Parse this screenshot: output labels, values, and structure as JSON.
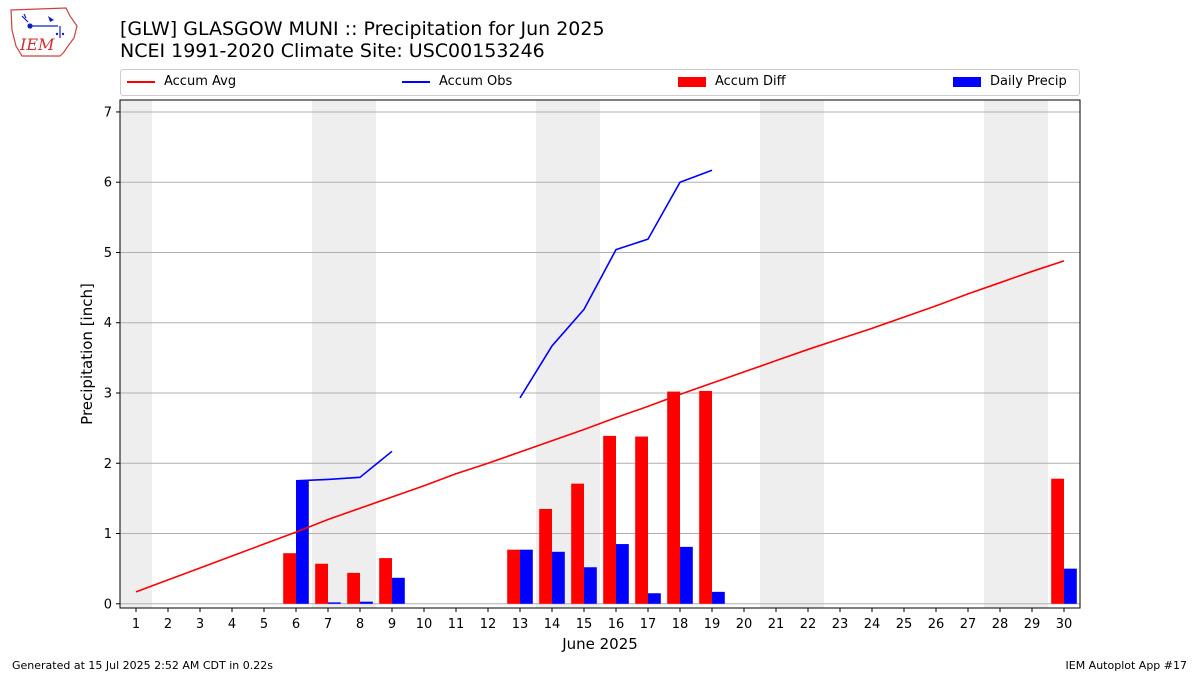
{
  "header": {
    "title_line1": "[GLW] GLASGOW MUNI :: Precipitation for Jun 2025",
    "title_line2": "NCEI 1991-2020 Climate Site: USC00153246"
  },
  "logo": {
    "text": "IEM",
    "icon": "iem-state-logo-icon"
  },
  "footer": {
    "left": "Generated at 15 Jul 2025 2:52 AM CDT in 0.22s",
    "right": "IEM Autoplot App #17"
  },
  "colors": {
    "avg": "#ff0000",
    "obs": "#0000ff",
    "diff": "#ff0000",
    "daily": "#0000ff",
    "weekend_band": "#eeeeee",
    "grid": "#b0b0b0"
  },
  "legend": {
    "placement": "top, above plot",
    "items": [
      {
        "label": "Accum Avg",
        "kind": "line",
        "color": "#ff0000"
      },
      {
        "label": "Accum Obs",
        "kind": "line",
        "color": "#0000ff"
      },
      {
        "label": "Accum Diff",
        "kind": "patch",
        "color": "#ff0000"
      },
      {
        "label": "Daily Precip",
        "kind": "patch",
        "color": "#0000ff"
      }
    ]
  },
  "chart_data": {
    "type": "bar",
    "title": "[GLW] GLASGOW MUNI :: Precipitation for Jun 2025",
    "subtitle": "NCEI 1991-2020 Climate Site: USC00153246",
    "xlabel": "June 2025",
    "ylabel": "Precipitation [inch]",
    "ylim": [
      -0.06,
      7.17
    ],
    "xlim": [
      0.5,
      30.5
    ],
    "yticks": [
      0,
      1,
      2,
      3,
      4,
      5,
      6,
      7
    ],
    "grid": "horizontal",
    "categories": [
      "1",
      "2",
      "3",
      "4",
      "5",
      "6",
      "7",
      "8",
      "9",
      "10",
      "11",
      "12",
      "13",
      "14",
      "15",
      "16",
      "17",
      "18",
      "19",
      "20",
      "21",
      "22",
      "23",
      "24",
      "25",
      "26",
      "27",
      "28",
      "29",
      "30"
    ],
    "weekend_days": [
      1,
      7,
      8,
      14,
      15,
      21,
      22,
      28,
      29
    ],
    "series": [
      {
        "name": "Accum Avg",
        "kind": "line",
        "values": [
          0.17,
          0.34,
          0.51,
          0.68,
          0.85,
          1.02,
          1.2,
          1.36,
          1.52,
          1.68,
          1.85,
          2.0,
          2.16,
          2.32,
          2.48,
          2.65,
          2.81,
          2.98,
          3.14,
          3.3,
          3.46,
          3.62,
          3.77,
          3.92,
          4.08,
          4.24,
          4.41,
          4.57,
          4.73,
          4.88
        ]
      },
      {
        "name": "Accum Obs",
        "kind": "line",
        "values": [
          null,
          null,
          null,
          null,
          null,
          1.75,
          1.77,
          1.8,
          2.17,
          null,
          null,
          null,
          2.93,
          3.67,
          4.19,
          5.04,
          5.19,
          6.0,
          6.17,
          null,
          null,
          null,
          null,
          null,
          null,
          null,
          null,
          null,
          null,
          null
        ]
      },
      {
        "name": "Accum Diff",
        "kind": "bar",
        "values": [
          0,
          0,
          0,
          0,
          0,
          0.72,
          0.57,
          0.44,
          0.65,
          0,
          0,
          0,
          0.77,
          1.35,
          1.71,
          2.39,
          2.38,
          3.02,
          3.03,
          0,
          0,
          0,
          0,
          0,
          0,
          0,
          0,
          0,
          0,
          1.78
        ]
      },
      {
        "name": "Daily Precip",
        "kind": "bar",
        "values": [
          0,
          0,
          0,
          0,
          0,
          1.75,
          0.02,
          0.03,
          0.37,
          0,
          0,
          0,
          0.77,
          0.74,
          0.52,
          0.85,
          0.15,
          0.81,
          0.17,
          0,
          0,
          0,
          0,
          0,
          0,
          0,
          0,
          0,
          0,
          0.5
        ]
      }
    ]
  }
}
